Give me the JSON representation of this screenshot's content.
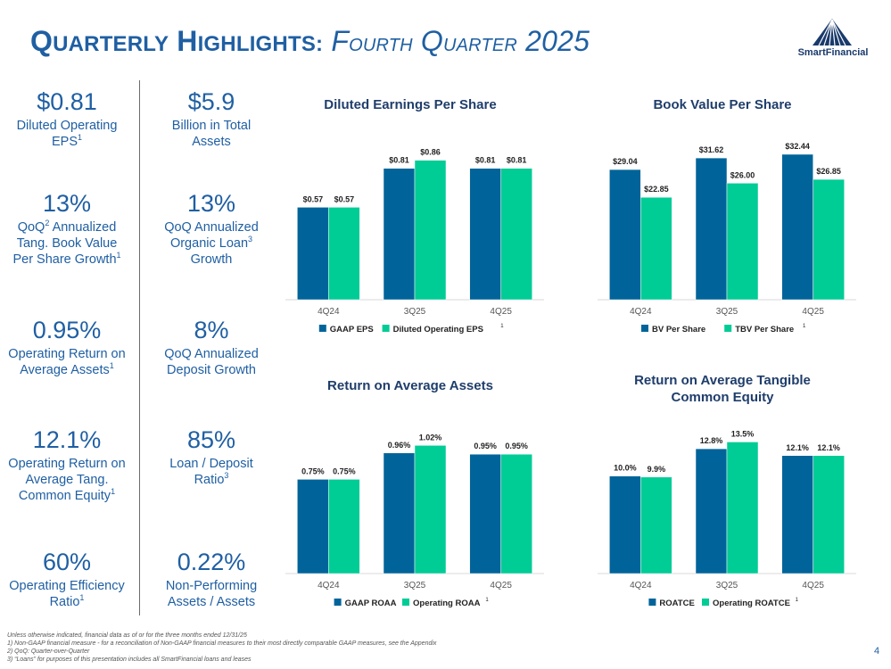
{
  "header": {
    "title_part1_cap": "Q",
    "title_part1_rest": "UARTERLY",
    "title_part2_cap": "H",
    "title_part2_rest": "IGHLIGHTS:",
    "subtitle_part1_cap": "F",
    "subtitle_part1_rest": "OURTH",
    "subtitle_part2_cap": "Q",
    "subtitle_part2_rest": "UARTER",
    "subtitle_year": "2025",
    "logo_text": "SmartFinancial"
  },
  "metrics_left": [
    {
      "value": "$0.81",
      "label_lines": [
        "Diluted Operating",
        "EPS"
      ],
      "sup": "1"
    },
    {
      "value": "13%",
      "label_lines": [
        "QoQ",
        "Annualized",
        "Tang. Book Value",
        "Per Share Growth"
      ],
      "sup_qoq": "2",
      "sup": "1"
    },
    {
      "value": "0.95%",
      "label_lines": [
        "Operating Return on",
        "Average Assets"
      ],
      "sup": "1"
    },
    {
      "value": "12.1%",
      "label_lines": [
        "Operating Return on",
        "Average Tang.",
        "Common Equity"
      ],
      "sup": "1"
    },
    {
      "value": "60%",
      "label_lines": [
        "Operating Efficiency",
        "Ratio"
      ],
      "sup": "1"
    }
  ],
  "metrics_right": [
    {
      "value": "$5.9",
      "label_lines": [
        "Billion in Total",
        "Assets"
      ]
    },
    {
      "value": "13%",
      "label_lines": [
        "QoQ Annualized",
        "Organic Loan",
        "Growth"
      ],
      "sup": "3"
    },
    {
      "value": "8%",
      "label_lines": [
        "QoQ Annualized",
        "Deposit Growth"
      ]
    },
    {
      "value": "85%",
      "label_lines": [
        "Loan / Deposit",
        "Ratio"
      ],
      "sup": "3"
    },
    {
      "value": "0.22%",
      "label_lines": [
        "Non-Performing",
        "Assets / Assets"
      ]
    }
  ],
  "colors": {
    "dark_blue": "#00649a",
    "green": "#00cc96",
    "title_blue": "#1f5fa3",
    "axis": "#d9d9d9"
  },
  "chart_data": [
    {
      "type": "bar",
      "title": "Diluted Earnings Per Share",
      "categories": [
        "4Q24",
        "3Q25",
        "4Q25"
      ],
      "series": [
        {
          "name": "GAAP EPS",
          "values": [
            0.57,
            0.81,
            0.81
          ],
          "labels": [
            "$0.57",
            "$0.81",
            "$0.81"
          ]
        },
        {
          "name": "Diluted Operating EPS",
          "values": [
            0.57,
            0.86,
            0.81
          ],
          "labels": [
            "$0.57",
            "$0.86",
            "$0.81"
          ],
          "legend_sup": "1"
        }
      ],
      "ylim": [
        0,
        1.1
      ]
    },
    {
      "type": "bar",
      "title": "Book Value Per Share",
      "categories": [
        "4Q24",
        "3Q25",
        "4Q25"
      ],
      "series": [
        {
          "name": "BV Per Share",
          "values": [
            29.04,
            31.62,
            32.44
          ],
          "labels": [
            "$29.04",
            "$31.62",
            "$32.44"
          ]
        },
        {
          "name": "TBV Per Share",
          "values": [
            22.85,
            26.0,
            26.85
          ],
          "labels": [
            "$22.85",
            "$26.00",
            "$26.85"
          ],
          "legend_sup": "1"
        }
      ],
      "ylim": [
        0,
        39.8
      ]
    },
    {
      "type": "bar",
      "title": "Return on Average Assets",
      "categories": [
        "4Q24",
        "3Q25",
        "4Q25"
      ],
      "series": [
        {
          "name": "GAAP ROAA",
          "values": [
            0.75,
            0.96,
            0.95
          ],
          "labels": [
            "0.75%",
            "0.96%",
            "0.95%"
          ]
        },
        {
          "name": "Operating ROAA",
          "values": [
            0.75,
            1.02,
            0.95
          ],
          "labels": [
            "0.75%",
            "1.02%",
            "0.95%"
          ],
          "legend_sup": "1"
        }
      ],
      "ylim": [
        0,
        1.42
      ]
    },
    {
      "type": "bar",
      "title_lines": [
        "Return on Average Tangible",
        "Common Equity"
      ],
      "categories": [
        "4Q24",
        "3Q25",
        "4Q25"
      ],
      "series": [
        {
          "name": "ROATCE",
          "values": [
            10.0,
            12.8,
            12.1
          ],
          "labels": [
            "10.0%",
            "12.8%",
            "12.1%"
          ]
        },
        {
          "name": "Operating ROATCE",
          "values": [
            9.9,
            13.5,
            12.1
          ],
          "labels": [
            "9.9%",
            "13.5%",
            "12.1%"
          ],
          "legend_sup": "1"
        }
      ],
      "ylim": [
        0,
        18.3
      ]
    }
  ],
  "footnotes": [
    "Unless otherwise indicated, financial data as of or for the three months ended 12/31/25",
    "1)    Non-GAAP financial measure - for a reconciliation of Non-GAAP financial measures to their most directly comparable GAAP measures, see the Appendix",
    "2)    QoQ: Quarter-over-Quarter",
    "3)    “Loans” for purposes of this presentation includes all SmartFinancial loans and leases"
  ],
  "page_number": "4"
}
